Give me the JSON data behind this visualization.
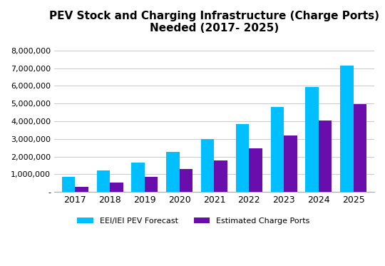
{
  "title_line1": "PEV Stock and Charging Infrastructure (Charge Ports)",
  "title_line2": "Needed (2017- 2025)",
  "years": [
    2017,
    2018,
    2019,
    2020,
    2021,
    2022,
    2023,
    2024,
    2025
  ],
  "pev_forecast": [
    850000,
    1230000,
    1680000,
    2280000,
    3000000,
    3820000,
    4820000,
    5950000,
    7150000
  ],
  "charge_ports": [
    280000,
    530000,
    860000,
    1310000,
    1790000,
    2450000,
    3200000,
    4020000,
    4970000
  ],
  "bar_color_pev": "#00BFFF",
  "bar_color_ports": "#6A0DAD",
  "legend_pev": "EEI/IEI PEV Forecast",
  "legend_ports": "Estimated Charge Ports",
  "ylim": [
    0,
    8500000
  ],
  "yticks": [
    0,
    1000000,
    2000000,
    3000000,
    4000000,
    5000000,
    6000000,
    7000000,
    8000000
  ],
  "background_color": "#ffffff",
  "grid_color": "#cccccc",
  "bar_width": 0.38
}
